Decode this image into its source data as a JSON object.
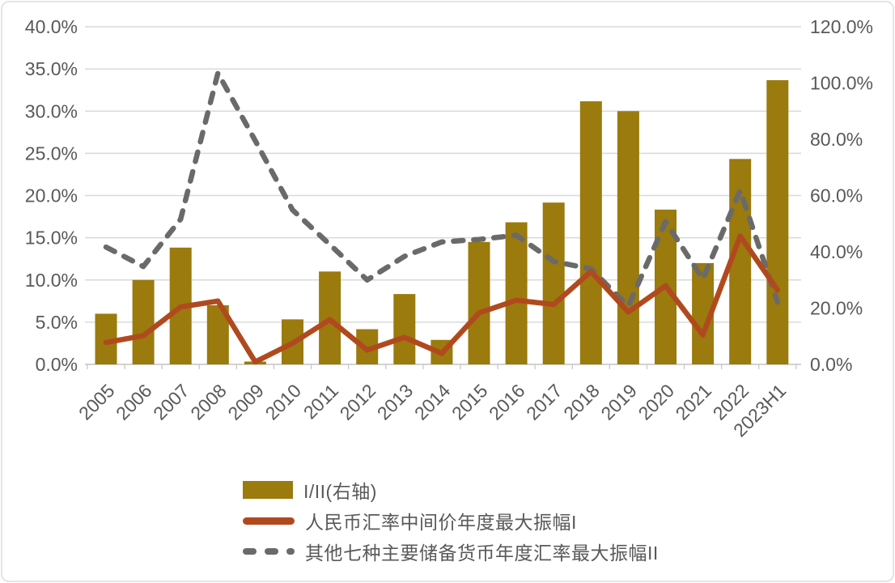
{
  "chart_data": {
    "type": "combo",
    "title": "",
    "categories": [
      "2005",
      "2006",
      "2007",
      "2008",
      "2009",
      "2010",
      "2011",
      "2012",
      "2013",
      "2014",
      "2015",
      "2016",
      "2017",
      "2018",
      "2019",
      "2020",
      "2021",
      "2022",
      "2023H1"
    ],
    "series": [
      {
        "name": "I/II(右轴)",
        "type": "bar",
        "axis": "right",
        "color": "#9B7A0E",
        "values": [
          18,
          30,
          41.5,
          21,
          1,
          16,
          33,
          12.5,
          25,
          8.7,
          43.5,
          50.5,
          57.5,
          93.5,
          90,
          55,
          36,
          73,
          101
        ]
      },
      {
        "name": "人民币汇率中间价年度最大振幅I",
        "type": "line",
        "style": "solid",
        "axis": "left",
        "color": "#B04A1E",
        "values": [
          2.6,
          3.4,
          6.8,
          7.5,
          0.3,
          2.5,
          5.3,
          1.7,
          3.2,
          1.3,
          6.1,
          7.6,
          7.1,
          11,
          6.2,
          9.3,
          3.5,
          15.2,
          8.8
        ]
      },
      {
        "name": "其他七种主要储备货币年度汇率最大振幅II",
        "type": "line",
        "style": "dashed",
        "axis": "left",
        "color": "#6A6A6A",
        "values": [
          13.9,
          11.6,
          17.2,
          34.5,
          26.5,
          18.3,
          14.2,
          10,
          12.8,
          14.5,
          14.8,
          15.3,
          12.2,
          11.3,
          6.9,
          16.9,
          10.1,
          20.6,
          7.4
        ]
      }
    ],
    "left_axis": {
      "min": 0,
      "max": 40,
      "tick_step": 5,
      "ticks": [
        "0.0%",
        "5.0%",
        "10.0%",
        "15.0%",
        "20.0%",
        "25.0%",
        "30.0%",
        "35.0%",
        "40.0%"
      ]
    },
    "right_axis": {
      "min": 0,
      "max": 120,
      "tick_step": 20,
      "ticks": [
        "0.0%",
        "20.0%",
        "40.0%",
        "60.0%",
        "80.0%",
        "100.0%",
        "120.0%"
      ]
    },
    "grid": true,
    "legend_position": "bottom-left"
  },
  "colors": {
    "grid": "#D9D9D9",
    "axis_line": "#C4C4C4",
    "axis_text": "#595959",
    "background": "#FFFFFF"
  }
}
